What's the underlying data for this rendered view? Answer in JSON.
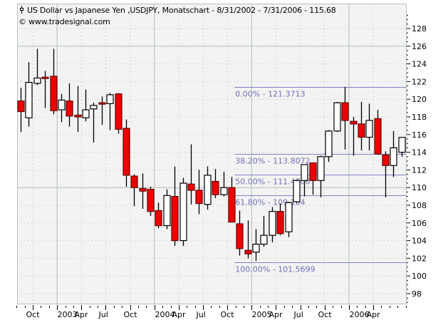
{
  "header": {
    "title": "US Dollar vs Japanese Yen ,USDJPY, Monatschart - 8/31/2002 - 7/31/2006 - 115.68",
    "title_icon": "candlestick-icon",
    "copyright": "© www.tradesignal.com"
  },
  "colors": {
    "background": "#ffffff",
    "plot_background": "#f3f3f3",
    "major_grid": "#b3c4b3",
    "minor_grid": "#bdbdbd",
    "up_candle": "#ffffff",
    "down_candle": "#ee0000",
    "candle_outline": "#000000",
    "fib_line": "#8080c8",
    "fib_text": "#7070b8"
  },
  "chart_data": {
    "type": "candlestick",
    "title": "US Dollar vs Japanese Yen ,USDJPY, Monatschart - 8/31/2002 - 7/31/2006 - 115.68",
    "xlabel": "",
    "ylabel": "",
    "ylim": [
      96.5,
      129.5
    ],
    "y_ticks": [
      98,
      100,
      102,
      104,
      106,
      108,
      110,
      112,
      114,
      116,
      118,
      120,
      122,
      124,
      126,
      128
    ],
    "x_ticks": [
      "Oct",
      "2003",
      "Apr",
      "Jul",
      "Oct",
      "2004",
      "Apr",
      "Jul",
      "Oct",
      "2005",
      "Apr",
      "Jul",
      "Oct",
      "2006",
      "Apr"
    ],
    "x_tick_index": [
      2,
      5,
      8,
      11,
      14,
      17,
      20,
      23,
      26,
      29,
      32,
      35,
      38,
      41,
      44
    ],
    "major_grid_index": [
      5,
      17,
      29,
      41
    ],
    "major_grid_y": [
      110,
      126
    ],
    "last_close": 115.68,
    "grid": true,
    "candles": [
      {
        "o": 119.8,
        "h": 121.3,
        "l": 116.3,
        "c": 118.6
      },
      {
        "o": 117.9,
        "h": 124.2,
        "l": 116.9,
        "c": 121.9
      },
      {
        "o": 121.8,
        "h": 125.7,
        "l": 121.6,
        "c": 122.4
      },
      {
        "o": 122.5,
        "h": 123.2,
        "l": 119.0,
        "c": 122.4
      },
      {
        "o": 122.6,
        "h": 125.7,
        "l": 118.3,
        "c": 118.7
      },
      {
        "o": 118.8,
        "h": 120.6,
        "l": 117.4,
        "c": 119.9
      },
      {
        "o": 119.8,
        "h": 121.8,
        "l": 116.9,
        "c": 118.1
      },
      {
        "o": 118.2,
        "h": 121.5,
        "l": 116.3,
        "c": 118.0
      },
      {
        "o": 117.9,
        "h": 121.1,
        "l": 117.5,
        "c": 118.8
      },
      {
        "o": 118.9,
        "h": 119.6,
        "l": 115.1,
        "c": 119.3
      },
      {
        "o": 119.6,
        "h": 120.3,
        "l": 117.1,
        "c": 119.5
      },
      {
        "o": 119.5,
        "h": 120.7,
        "l": 116.5,
        "c": 120.5
      },
      {
        "o": 120.6,
        "h": 120.7,
        "l": 116.1,
        "c": 116.6
      },
      {
        "o": 116.7,
        "h": 117.7,
        "l": 110.1,
        "c": 111.4
      },
      {
        "o": 111.3,
        "h": 111.5,
        "l": 107.9,
        "c": 110.0
      },
      {
        "o": 109.9,
        "h": 111.6,
        "l": 107.6,
        "c": 109.6
      },
      {
        "o": 109.8,
        "h": 110.1,
        "l": 106.8,
        "c": 107.3
      },
      {
        "o": 107.4,
        "h": 108.3,
        "l": 105.4,
        "c": 105.7
      },
      {
        "o": 105.7,
        "h": 109.8,
        "l": 105.3,
        "c": 109.1
      },
      {
        "o": 109.0,
        "h": 112.4,
        "l": 103.4,
        "c": 104.0
      },
      {
        "o": 104.0,
        "h": 111.1,
        "l": 103.4,
        "c": 110.5
      },
      {
        "o": 110.4,
        "h": 114.9,
        "l": 108.1,
        "c": 109.7
      },
      {
        "o": 109.7,
        "h": 112.0,
        "l": 107.0,
        "c": 108.2
      },
      {
        "o": 108.1,
        "h": 112.4,
        "l": 107.5,
        "c": 111.4
      },
      {
        "o": 110.7,
        "h": 112.1,
        "l": 108.8,
        "c": 109.2
      },
      {
        "o": 109.2,
        "h": 111.8,
        "l": 109.0,
        "c": 110.0
      },
      {
        "o": 110.0,
        "h": 111.2,
        "l": 106.1,
        "c": 106.1
      },
      {
        "o": 105.9,
        "h": 107.4,
        "l": 102.3,
        "c": 103.1
      },
      {
        "o": 102.9,
        "h": 106.3,
        "l": 102.0,
        "c": 102.5
      },
      {
        "o": 102.7,
        "h": 105.3,
        "l": 101.7,
        "c": 103.6
      },
      {
        "o": 103.6,
        "h": 106.8,
        "l": 103.3,
        "c": 104.6
      },
      {
        "o": 104.6,
        "h": 107.8,
        "l": 103.8,
        "c": 107.3
      },
      {
        "o": 107.3,
        "h": 108.2,
        "l": 104.6,
        "c": 104.8
      },
      {
        "o": 105.0,
        "h": 108.4,
        "l": 104.4,
        "c": 108.3
      },
      {
        "o": 108.4,
        "h": 110.9,
        "l": 108.2,
        "c": 110.8
      },
      {
        "o": 110.8,
        "h": 112.6,
        "l": 109.0,
        "c": 112.6
      },
      {
        "o": 112.8,
        "h": 112.8,
        "l": 109.2,
        "c": 110.8
      },
      {
        "o": 110.8,
        "h": 113.6,
        "l": 108.9,
        "c": 113.5
      },
      {
        "o": 113.5,
        "h": 116.5,
        "l": 112.9,
        "c": 116.4
      },
      {
        "o": 116.4,
        "h": 119.7,
        "l": 116.3,
        "c": 119.6
      },
      {
        "o": 119.6,
        "h": 121.4,
        "l": 114.3,
        "c": 117.6
      },
      {
        "o": 117.5,
        "h": 118.0,
        "l": 113.6,
        "c": 117.2
      },
      {
        "o": 117.2,
        "h": 119.7,
        "l": 114.2,
        "c": 115.7
      },
      {
        "o": 115.7,
        "h": 119.5,
        "l": 114.2,
        "c": 117.6
      },
      {
        "o": 117.8,
        "h": 118.8,
        "l": 113.7,
        "c": 113.8
      },
      {
        "o": 113.7,
        "h": 114.1,
        "l": 108.9,
        "c": 112.5
      },
      {
        "o": 112.5,
        "h": 116.4,
        "l": 111.2,
        "c": 114.5
      },
      {
        "o": 114.0,
        "h": 115.7,
        "l": 113.5,
        "c": 115.68
      }
    ],
    "fibonacci": [
      {
        "label": "0.00% - 121.3713",
        "value": 121.3713
      },
      {
        "label": "38.20% - 113.8072",
        "value": 113.8072
      },
      {
        "label": "50.00% - 111.4706",
        "value": 111.4706
      },
      {
        "label": "61.80% - 109.134",
        "value": 109.134
      },
      {
        "label": "100.00% - 101.5699",
        "value": 101.5699
      }
    ],
    "fib_start_index": 27
  }
}
